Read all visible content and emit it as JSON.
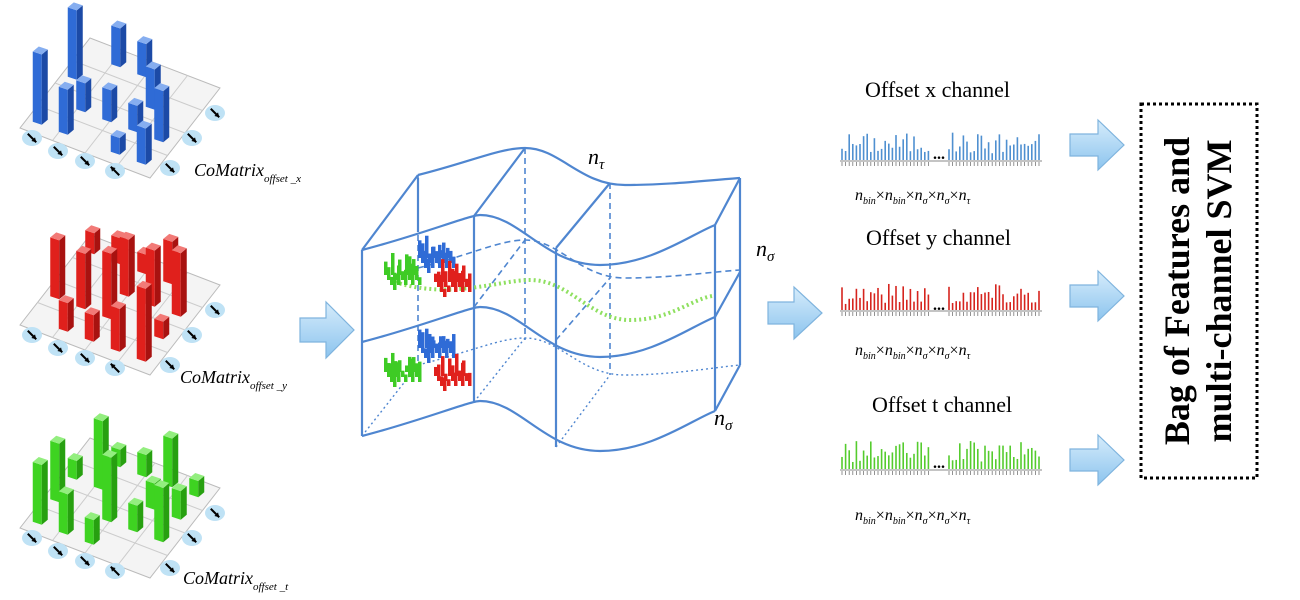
{
  "comatrices": [
    {
      "label": "CoMatrix",
      "subscript": "offset _x",
      "color": "#2f6bd6",
      "light": "#86aef0",
      "dark": "#1c4aa6"
    },
    {
      "label": "CoMatrix",
      "subscript": "offset _y",
      "color": "#e0201c",
      "light": "#f27a77",
      "dark": "#a81210"
    },
    {
      "label": "CoMatrix",
      "subscript": "offset _t",
      "color": "#3ed321",
      "light": "#93ee7f",
      "dark": "#27a010"
    }
  ],
  "cuboid": {
    "n_tau": "n",
    "n_tau_sub": "τ",
    "n_sigma_right": "n",
    "n_sigma_right_sub": "σ",
    "n_sigma_bottom": "n",
    "n_sigma_bottom_sub": "σ"
  },
  "channels": [
    {
      "title": "Offset x channel",
      "color": "#4f90d0"
    },
    {
      "title": "Offset y channel",
      "color": "#d6241e"
    },
    {
      "title": "Offset t channel",
      "color": "#55cc2e"
    }
  ],
  "ellipsis": "...",
  "dimension_formula": {
    "n": "n",
    "bin": "bin",
    "times": "×",
    "sigma": "σ",
    "tau": "τ"
  },
  "svm_box": {
    "line1": "Bag of Features and",
    "line2": "multi-channel SVM"
  }
}
